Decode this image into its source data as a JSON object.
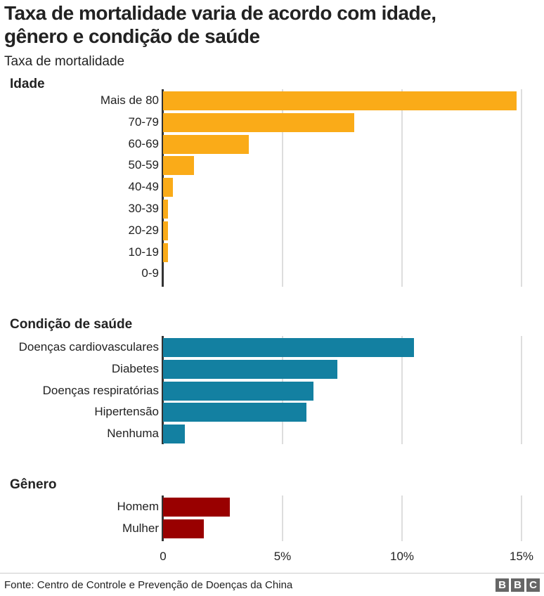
{
  "header": {
    "title_line1": "Taxa de mortalidade varia de acordo com idade,",
    "title_line2": "gênero e condição de saúde",
    "subtitle": "Taxa de mortalidade"
  },
  "footer": {
    "source": "Fonte: Centro de Controle e Prevenção de Doenças da China",
    "logo": "BBC"
  },
  "chart_data": {
    "type": "bar",
    "orientation": "horizontal",
    "xlim": [
      0,
      15
    ],
    "x_ticks": [
      "0",
      "5%",
      "10%",
      "15%"
    ],
    "grid": true,
    "groups": [
      {
        "name": "Idade",
        "color": "#FAAB18",
        "categories": [
          "Mais de 80",
          "70-79",
          "60-69",
          "50-59",
          "40-49",
          "30-39",
          "20-29",
          "10-19",
          "0-9"
        ],
        "values": [
          14.8,
          8.0,
          3.6,
          1.3,
          0.4,
          0.2,
          0.2,
          0.2,
          0
        ]
      },
      {
        "name": "Condição de saúde",
        "color": "#1380A1",
        "categories": [
          "Doenças cardiovasculares",
          "Diabetes",
          "Doenças respiratórias",
          "Hipertensão",
          "Nenhuma"
        ],
        "values": [
          10.5,
          7.3,
          6.3,
          6.0,
          0.9
        ]
      },
      {
        "name": "Gênero",
        "color": "#990000",
        "categories": [
          "Homem",
          "Mulher"
        ],
        "values": [
          2.8,
          1.7
        ]
      }
    ]
  }
}
